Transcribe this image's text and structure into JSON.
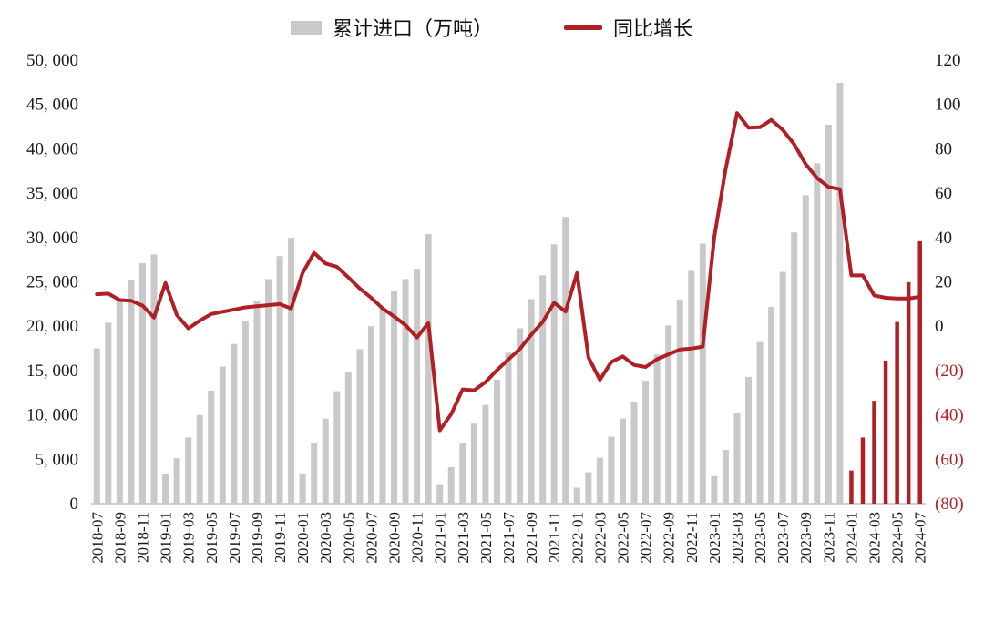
{
  "legend": {
    "bars_label": "累计进口（万吨）",
    "line_label": "同比增长"
  },
  "colors": {
    "bar": "#C9C9C9",
    "bar_highlight": "#B01F24",
    "line": "#B01F24",
    "tick_text": "#1A1A1A",
    "negative_tick_text": "#B01F24",
    "axis_line": "#BFBFBF"
  },
  "chart_data": {
    "type": "bar+line",
    "title": "",
    "x": [
      "2018-07",
      "2018-08",
      "2018-09",
      "2018-10",
      "2018-11",
      "2018-12",
      "2019-01",
      "2019-02",
      "2019-03",
      "2019-04",
      "2019-05",
      "2019-06",
      "2019-07",
      "2019-08",
      "2019-09",
      "2019-10",
      "2019-11",
      "2019-12",
      "2020-01",
      "2020-02",
      "2020-03",
      "2020-04",
      "2020-05",
      "2020-06",
      "2020-07",
      "2020-08",
      "2020-09",
      "2020-10",
      "2020-11",
      "2020-12",
      "2021-01",
      "2021-02",
      "2021-03",
      "2021-04",
      "2021-05",
      "2021-06",
      "2021-07",
      "2021-08",
      "2021-09",
      "2021-10",
      "2021-11",
      "2021-12",
      "2022-01",
      "2022-02",
      "2022-03",
      "2022-04",
      "2022-05",
      "2022-06",
      "2022-07",
      "2022-08",
      "2022-09",
      "2022-10",
      "2022-11",
      "2022-12",
      "2023-01",
      "2023-02",
      "2023-03",
      "2023-04",
      "2023-05",
      "2023-06",
      "2023-07",
      "2023-08",
      "2023-09",
      "2023-10",
      "2023-11",
      "2023-12",
      "2024-01",
      "2024-02",
      "2024-03",
      "2024-04",
      "2024-05",
      "2024-06",
      "2024-07"
    ],
    "series": [
      {
        "name": "累计进口（万吨）",
        "type": "bar",
        "axis": "left",
        "values": [
          17500,
          20400,
          22900,
          25200,
          27100,
          28100,
          3350,
          5110,
          7460,
          9990,
          12740,
          15450,
          18000,
          20600,
          22900,
          25310,
          27900,
          29970,
          3400,
          6810,
          9580,
          12670,
          14870,
          17400,
          20010,
          22110,
          23940,
          25310,
          26470,
          30400,
          2100,
          4110,
          6850,
          9010,
          11120,
          13960,
          17010,
          19770,
          23040,
          25730,
          29230,
          32320,
          1800,
          3540,
          5180,
          7540,
          9600,
          11500,
          13850,
          16800,
          20090,
          22990,
          26230,
          29320,
          3100,
          6060,
          10180,
          14290,
          18210,
          22190,
          26120,
          30570,
          34770,
          38360,
          42710,
          47440,
          3730,
          7450,
          11590,
          16120,
          20480,
          24960,
          29580
        ]
      },
      {
        "name": "同比增长",
        "type": "line",
        "axis": "right",
        "values": [
          14.4,
          14.7,
          11.8,
          11.5,
          9.3,
          3.9,
          19.5,
          5.0,
          -1.0,
          2.5,
          5.5,
          6.5,
          7.5,
          8.5,
          9.0,
          9.5,
          10.0,
          8.0,
          24.0,
          33.1,
          28.3,
          26.8,
          22.0,
          17.0,
          12.8,
          8.0,
          4.4,
          0.5,
          -5.1,
          1.4,
          -47.0,
          -39.6,
          -28.5,
          -28.9,
          -25.2,
          -19.8,
          -15.0,
          -10.3,
          -3.8,
          1.9,
          10.6,
          6.6,
          24.0,
          -14.0,
          -24.2,
          -16.2,
          -13.6,
          -17.5,
          -18.4,
          -14.9,
          -12.7,
          -10.5,
          -10.1,
          -9.2,
          40.0,
          70.8,
          96.1,
          89.5,
          89.7,
          93.0,
          88.5,
          82.0,
          73.1,
          66.8,
          62.8,
          61.8,
          22.9,
          22.9,
          13.9,
          12.8,
          12.5,
          12.5,
          13.3
        ]
      }
    ],
    "left_axis": {
      "min": 0,
      "max": 50000,
      "step": 5000,
      "tick_labels": [
        "0",
        "5, 000",
        "10, 000",
        "15, 000",
        "20, 000",
        "25, 000",
        "30, 000",
        "35, 000",
        "40, 000",
        "45, 000",
        "50, 000"
      ]
    },
    "right_axis": {
      "min": -80,
      "max": 120,
      "step": 20,
      "tick_labels_top_down": [
        "120",
        "100",
        "80",
        "60",
        "40",
        "20",
        "0",
        "(20)",
        "(40)",
        "(60)",
        "(80)"
      ]
    },
    "x_tick_every": 2,
    "highlight_from_index": 66,
    "grid": false,
    "legend_position": "top-center"
  }
}
